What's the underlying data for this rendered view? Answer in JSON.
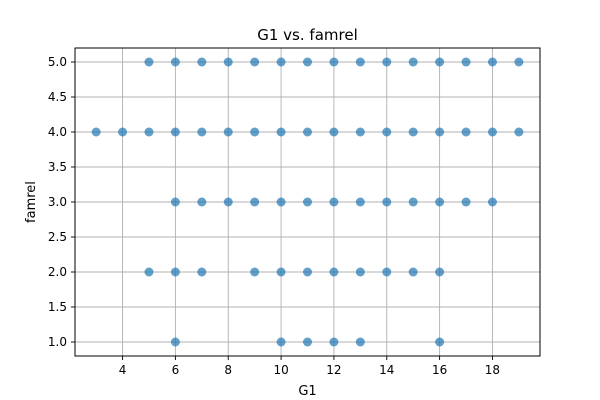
{
  "chart_data": {
    "type": "scatter",
    "title": "G1 vs. famrel",
    "xlabel": "G1",
    "ylabel": "famrel",
    "xlim": [
      2.2,
      19.8
    ],
    "ylim": [
      0.8,
      5.2
    ],
    "xticks": [
      4,
      6,
      8,
      10,
      12,
      14,
      16,
      18
    ],
    "yticks": [
      1.0,
      1.5,
      2.0,
      2.5,
      3.0,
      3.5,
      4.0,
      4.5,
      5.0
    ],
    "xtick_labels": [
      "4",
      "6",
      "8",
      "10",
      "12",
      "14",
      "16",
      "18"
    ],
    "ytick_labels": [
      "1.0",
      "1.5",
      "2.0",
      "2.5",
      "3.0",
      "3.5",
      "4.0",
      "4.5",
      "5.0"
    ],
    "grid": true,
    "marker_color": "#1f77b4",
    "marker_alpha": 0.7,
    "series": [
      {
        "points": [
          {
            "x": 5,
            "y": 5
          },
          {
            "x": 6,
            "y": 5
          },
          {
            "x": 7,
            "y": 5
          },
          {
            "x": 8,
            "y": 5
          },
          {
            "x": 9,
            "y": 5
          },
          {
            "x": 10,
            "y": 5
          },
          {
            "x": 11,
            "y": 5
          },
          {
            "x": 12,
            "y": 5
          },
          {
            "x": 13,
            "y": 5
          },
          {
            "x": 14,
            "y": 5
          },
          {
            "x": 15,
            "y": 5
          },
          {
            "x": 16,
            "y": 5
          },
          {
            "x": 17,
            "y": 5
          },
          {
            "x": 18,
            "y": 5
          },
          {
            "x": 19,
            "y": 5
          },
          {
            "x": 3,
            "y": 4
          },
          {
            "x": 4,
            "y": 4
          },
          {
            "x": 5,
            "y": 4
          },
          {
            "x": 6,
            "y": 4
          },
          {
            "x": 7,
            "y": 4
          },
          {
            "x": 8,
            "y": 4
          },
          {
            "x": 9,
            "y": 4
          },
          {
            "x": 10,
            "y": 4
          },
          {
            "x": 11,
            "y": 4
          },
          {
            "x": 12,
            "y": 4
          },
          {
            "x": 13,
            "y": 4
          },
          {
            "x": 14,
            "y": 4
          },
          {
            "x": 15,
            "y": 4
          },
          {
            "x": 16,
            "y": 4
          },
          {
            "x": 17,
            "y": 4
          },
          {
            "x": 18,
            "y": 4
          },
          {
            "x": 19,
            "y": 4
          },
          {
            "x": 6,
            "y": 3
          },
          {
            "x": 7,
            "y": 3
          },
          {
            "x": 8,
            "y": 3
          },
          {
            "x": 9,
            "y": 3
          },
          {
            "x": 10,
            "y": 3
          },
          {
            "x": 11,
            "y": 3
          },
          {
            "x": 12,
            "y": 3
          },
          {
            "x": 13,
            "y": 3
          },
          {
            "x": 14,
            "y": 3
          },
          {
            "x": 15,
            "y": 3
          },
          {
            "x": 16,
            "y": 3
          },
          {
            "x": 17,
            "y": 3
          },
          {
            "x": 18,
            "y": 3
          },
          {
            "x": 5,
            "y": 2
          },
          {
            "x": 6,
            "y": 2
          },
          {
            "x": 7,
            "y": 2
          },
          {
            "x": 9,
            "y": 2
          },
          {
            "x": 10,
            "y": 2
          },
          {
            "x": 11,
            "y": 2
          },
          {
            "x": 12,
            "y": 2
          },
          {
            "x": 13,
            "y": 2
          },
          {
            "x": 14,
            "y": 2
          },
          {
            "x": 15,
            "y": 2
          },
          {
            "x": 16,
            "y": 2
          },
          {
            "x": 6,
            "y": 1
          },
          {
            "x": 10,
            "y": 1
          },
          {
            "x": 11,
            "y": 1
          },
          {
            "x": 12,
            "y": 1
          },
          {
            "x": 13,
            "y": 1
          },
          {
            "x": 16,
            "y": 1
          }
        ]
      }
    ]
  }
}
